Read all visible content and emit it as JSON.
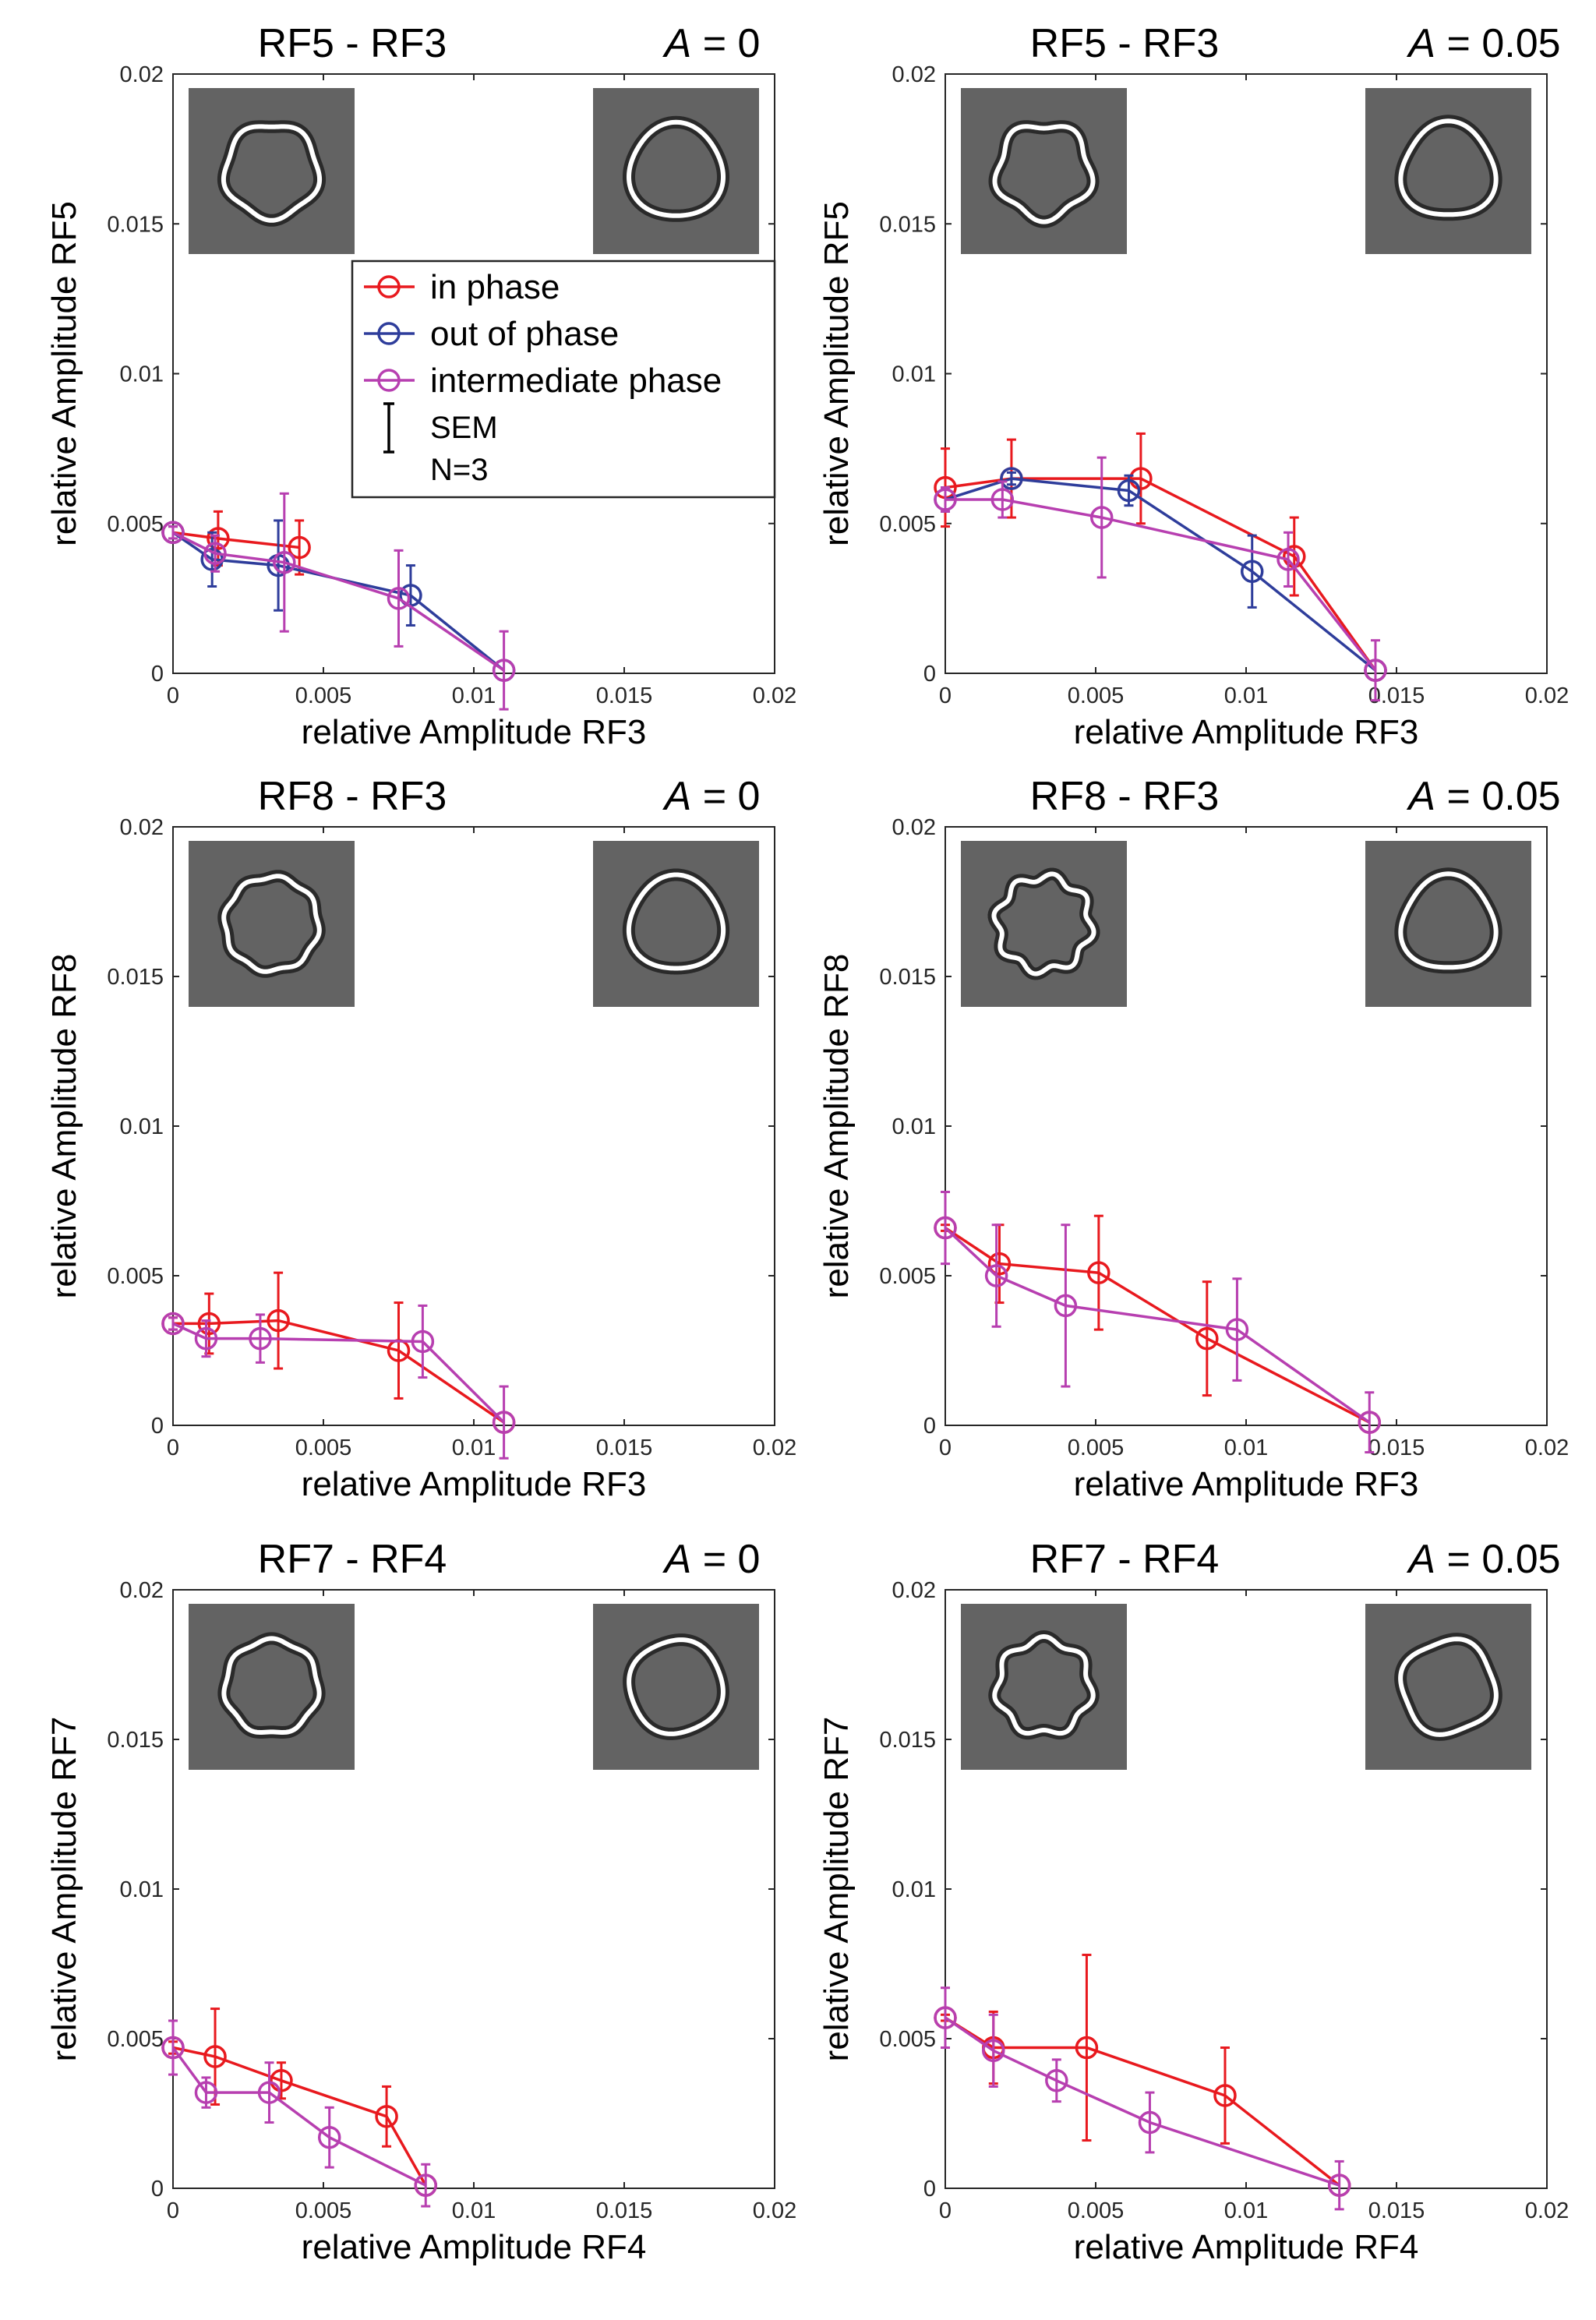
{
  "colors": {
    "in_phase": "#e8191e",
    "out_of_phase": "#2e3d9b",
    "intermediate_phase": "#b73fb0",
    "axis": "#262626",
    "thumb_bg": "#636363"
  },
  "legend": {
    "entries": [
      {
        "label": "in phase",
        "color": "#e8191e"
      },
      {
        "label": "out of phase",
        "color": "#2e3d9b"
      },
      {
        "label": "intermediate phase",
        "color": "#b73fb0"
      }
    ],
    "sem_label": "SEM",
    "n_label": "N=3",
    "placement": "upper-middle of top-left panel"
  },
  "chart_data": [
    {
      "type": "line",
      "title_left": "RF5 - RF3",
      "title_a_var": "A",
      "title_a_rest": " = 0",
      "xlabel": "relative Amplitude RF3",
      "ylabel": "relative Amplitude RF5",
      "xlim": [
        0,
        0.02
      ],
      "ylim": [
        0,
        0.02
      ],
      "xticks": [
        "0",
        "0.005",
        "0.01",
        "0.015",
        "0.02"
      ],
      "yticks": [
        "0",
        "0.005",
        "0.01",
        "0.015",
        "0.02"
      ],
      "grid": false,
      "thumbnails": [
        {
          "rf": 5,
          "amp": 0.055
        },
        {
          "rf": 3,
          "amp": 0.045
        }
      ],
      "series": [
        {
          "key": "in_phase",
          "x": [
            0,
            0.0015,
            0.0042
          ],
          "y": [
            0.0047,
            0.0045,
            0.0042
          ],
          "err": [
            0.0002,
            0.0009,
            0.0009
          ]
        },
        {
          "key": "out_of_phase",
          "x": [
            0,
            0.0013,
            0.0035,
            0.0079,
            0.011
          ],
          "y": [
            0.0047,
            0.0038,
            0.0036,
            0.0026,
            0.0001
          ],
          "err": [
            0.0002,
            0.0009,
            0.0015,
            0.001,
            0
          ]
        },
        {
          "key": "intermediate_phase",
          "x": [
            0,
            0.0014,
            0.0037,
            0.0075,
            0.011
          ],
          "y": [
            0.0047,
            0.004,
            0.0037,
            0.0025,
            0.0001
          ],
          "err": [
            0.0002,
            0.0006,
            0.0023,
            0.0016,
            0.0013
          ]
        }
      ]
    },
    {
      "type": "line",
      "title_left": "RF5 - RF3",
      "title_a_var": "A",
      "title_a_rest": " = 0.05",
      "xlabel": "relative Amplitude RF3",
      "ylabel": "relative Amplitude RF5",
      "xlim": [
        0,
        0.02
      ],
      "ylim": [
        0,
        0.02
      ],
      "xticks": [
        "0",
        "0.005",
        "0.01",
        "0.015",
        "0.02"
      ],
      "yticks": [
        "0",
        "0.005",
        "0.01",
        "0.015",
        "0.02"
      ],
      "grid": false,
      "thumbnails": [
        {
          "rf": 5,
          "amp": 0.085
        },
        {
          "rf": 3,
          "amp": 0.07
        }
      ],
      "series": [
        {
          "key": "in_phase",
          "x": [
            0,
            0.0022,
            0.0065,
            0.0116,
            0.0143
          ],
          "y": [
            0.0062,
            0.0065,
            0.0065,
            0.0039,
            0.0001
          ],
          "err": [
            0.0013,
            0.0013,
            0.0015,
            0.0013,
            0
          ]
        },
        {
          "key": "out_of_phase",
          "x": [
            0,
            0.0022,
            0.0061,
            0.0102,
            0.0143
          ],
          "y": [
            0.0058,
            0.0065,
            0.0061,
            0.0034,
            0.0001
          ],
          "err": [
            0.0004,
            0.0002,
            0.0005,
            0.0012,
            0
          ]
        },
        {
          "key": "intermediate_phase",
          "x": [
            0,
            0.0019,
            0.0052,
            0.0114,
            0.0143
          ],
          "y": [
            0.0058,
            0.0058,
            0.0052,
            0.0038,
            0.0001
          ],
          "err": [
            0.0004,
            0.0006,
            0.002,
            0.0009,
            0.001
          ]
        }
      ]
    },
    {
      "type": "line",
      "title_left": "RF8 - RF3",
      "title_a_var": "A",
      "title_a_rest": " = 0",
      "xlabel": "relative Amplitude RF3",
      "ylabel": "relative Amplitude RF8",
      "xlim": [
        0,
        0.02
      ],
      "ylim": [
        0,
        0.02
      ],
      "xticks": [
        "0",
        "0.005",
        "0.01",
        "0.015",
        "0.02"
      ],
      "yticks": [
        "0",
        "0.005",
        "0.01",
        "0.015",
        "0.02"
      ],
      "grid": false,
      "thumbnails": [
        {
          "rf": 8,
          "amp": 0.035
        },
        {
          "rf": 3,
          "amp": 0.05
        }
      ],
      "series": [
        {
          "key": "in_phase",
          "x": [
            0,
            0.0012,
            0.0035,
            0.0075,
            0.011
          ],
          "y": [
            0.0034,
            0.0034,
            0.0035,
            0.0025,
            0.0001
          ],
          "err": [
            0.0002,
            0.001,
            0.0016,
            0.0016,
            0
          ]
        },
        {
          "key": "intermediate_phase",
          "x": [
            0,
            0.0011,
            0.0029,
            0.0083,
            0.011
          ],
          "y": [
            0.0034,
            0.0029,
            0.0029,
            0.0028,
            0.0001
          ],
          "err": [
            0.0002,
            0.0006,
            0.0008,
            0.0012,
            0.0012
          ]
        }
      ]
    },
    {
      "type": "line",
      "title_left": "RF8 - RF3",
      "title_a_var": "A",
      "title_a_rest": " = 0.05",
      "xlabel": "relative Amplitude RF3",
      "ylabel": "relative Amplitude RF8",
      "xlim": [
        0,
        0.02
      ],
      "ylim": [
        0,
        0.02
      ],
      "xticks": [
        "0",
        "0.005",
        "0.01",
        "0.015",
        "0.02"
      ],
      "yticks": [
        "0",
        "0.005",
        "0.01",
        "0.015",
        "0.02"
      ],
      "grid": false,
      "thumbnails": [
        {
          "rf": 8,
          "amp": 0.085
        },
        {
          "rf": 3,
          "amp": 0.07
        }
      ],
      "series": [
        {
          "key": "in_phase",
          "x": [
            0,
            0.0018,
            0.0051,
            0.0087,
            0.0141
          ],
          "y": [
            0.0066,
            0.0054,
            0.0051,
            0.0029,
            0.0001
          ],
          "err": [
            0.0001,
            0.0013,
            0.0019,
            0.0019,
            0
          ]
        },
        {
          "key": "intermediate_phase",
          "x": [
            0,
            0.0017,
            0.004,
            0.0097,
            0.0141
          ],
          "y": [
            0.0066,
            0.005,
            0.004,
            0.0032,
            0.0001
          ],
          "err": [
            0.0012,
            0.0017,
            0.0027,
            0.0017,
            0.001
          ]
        }
      ]
    },
    {
      "type": "line",
      "title_left": "RF7 - RF4",
      "title_a_var": "A",
      "title_a_rest": " = 0",
      "xlabel": "relative Amplitude RF4",
      "ylabel": "relative Amplitude RF7",
      "xlim": [
        0,
        0.02
      ],
      "ylim": [
        0,
        0.02
      ],
      "xticks": [
        "0",
        "0.005",
        "0.01",
        "0.015",
        "0.02"
      ],
      "yticks": [
        "0",
        "0.005",
        "0.01",
        "0.015",
        "0.02"
      ],
      "grid": false,
      "thumbnails": [
        {
          "rf": 7,
          "amp": 0.035
        },
        {
          "rf": 4,
          "amp": 0.03
        }
      ],
      "series": [
        {
          "key": "in_phase",
          "x": [
            0,
            0.0014,
            0.0036,
            0.0071,
            0.0084
          ],
          "y": [
            0.0047,
            0.0044,
            0.0036,
            0.0024,
            0.0001
          ],
          "err": [
            0.0002,
            0.0016,
            0.0006,
            0.001,
            0
          ]
        },
        {
          "key": "intermediate_phase",
          "x": [
            0,
            0.0011,
            0.0032,
            0.0052,
            0.0084
          ],
          "y": [
            0.0047,
            0.0032,
            0.0032,
            0.0017,
            0.0001
          ],
          "err": [
            0.0009,
            0.0005,
            0.001,
            0.001,
            0.0007
          ]
        }
      ]
    },
    {
      "type": "line",
      "title_left": "RF7 - RF4",
      "title_a_var": "A",
      "title_a_rest": " = 0.05",
      "xlabel": "relative Amplitude RF4",
      "ylabel": "relative Amplitude RF7",
      "xlim": [
        0,
        0.02
      ],
      "ylim": [
        0,
        0.02
      ],
      "xticks": [
        "0",
        "0.005",
        "0.01",
        "0.015",
        "0.02"
      ],
      "yticks": [
        "0",
        "0.005",
        "0.01",
        "0.015",
        "0.02"
      ],
      "grid": false,
      "thumbnails": [
        {
          "rf": 7,
          "amp": 0.075
        },
        {
          "rf": 4,
          "amp": 0.06
        }
      ],
      "series": [
        {
          "key": "in_phase",
          "x": [
            0,
            0.0016,
            0.0047,
            0.0093,
            0.0131
          ],
          "y": [
            0.0057,
            0.0047,
            0.0047,
            0.0031,
            0.0001
          ],
          "err": [
            0.0001,
            0.0012,
            0.0031,
            0.0016,
            0
          ]
        },
        {
          "key": "intermediate_phase",
          "x": [
            0,
            0.0016,
            0.0037,
            0.0068,
            0.0131
          ],
          "y": [
            0.0057,
            0.0046,
            0.0036,
            0.0022,
            0.0001
          ],
          "err": [
            0.001,
            0.0012,
            0.0007,
            0.001,
            0.0008
          ]
        }
      ]
    }
  ]
}
